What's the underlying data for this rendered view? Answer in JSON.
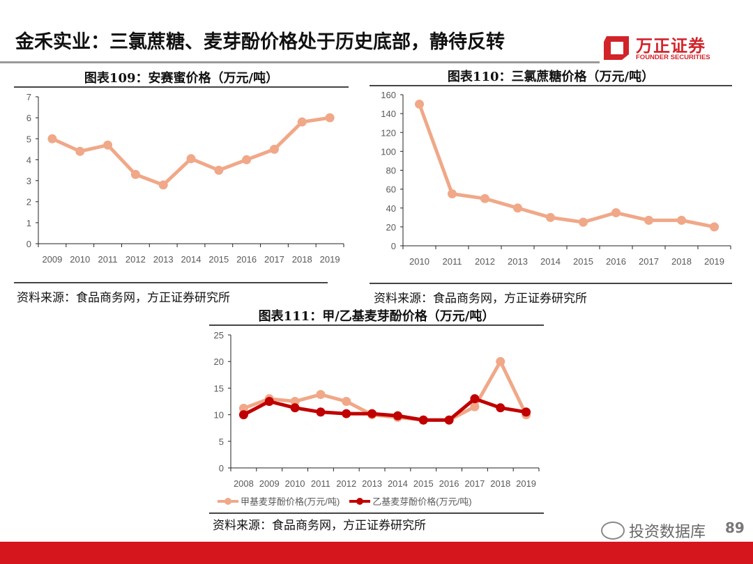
{
  "header": {
    "title": "金禾实业：三氯蔗糖、麦芽酚价格处于历史底部，静待反转",
    "logo_cn": "万正证券",
    "logo_en": "FOUNDER SECURITIES",
    "brand_color": "#d2232a"
  },
  "footer": {
    "watermark": "投资数据库",
    "page_number": "89"
  },
  "chart_data": [
    {
      "type": "line",
      "title": "图表109：安赛蜜价格（万元/吨）",
      "source": "资料来源：食品商务网，方正证券研究所",
      "categories": [
        "2009",
        "2010",
        "2011",
        "2012",
        "2013",
        "2014",
        "2015",
        "2016",
        "2017",
        "2018",
        "2019"
      ],
      "series": [
        {
          "values": [
            5.0,
            4.4,
            4.7,
            3.3,
            2.8,
            4.05,
            3.5,
            4.0,
            4.5,
            5.8,
            6.0
          ],
          "color": "#f0a888"
        }
      ],
      "ylim": [
        0,
        7
      ],
      "yticks": [
        0,
        1,
        2,
        3,
        4,
        5,
        6,
        7
      ],
      "grid": false
    },
    {
      "type": "line",
      "title": "图表110：三氯蔗糖价格（万元/吨）",
      "source": "资料来源：食品商务网，方正证券研究所",
      "categories": [
        "2010",
        "2011",
        "2012",
        "2013",
        "2014",
        "2015",
        "2016",
        "2017",
        "2018",
        "2019"
      ],
      "series": [
        {
          "values": [
            150,
            55,
            50,
            40,
            30,
            25,
            35,
            27,
            27,
            20
          ],
          "color": "#f0a888"
        }
      ],
      "ylim": [
        0,
        160
      ],
      "yticks": [
        0,
        20,
        40,
        60,
        80,
        100,
        120,
        140,
        160
      ],
      "grid": false
    },
    {
      "type": "line",
      "title": "图表111：甲/乙基麦芽酚价格（万元/吨）",
      "source": "资料来源：食品商务网，方正证券研究所",
      "categories": [
        "2008",
        "2009",
        "2010",
        "2011",
        "2012",
        "2013",
        "2014",
        "2015",
        "2016",
        "2017",
        "2018",
        "2019"
      ],
      "series": [
        {
          "name": "甲基麦芽酚价格(万元/吨)",
          "values": [
            11.2,
            13.0,
            12.5,
            13.8,
            12.5,
            10.0,
            9.5,
            9.0,
            9.0,
            11.5,
            20.0,
            10.0
          ],
          "color": "#f0a888"
        },
        {
          "name": "乙基麦芽酚价格(万元/吨)",
          "values": [
            10.0,
            12.5,
            11.3,
            10.5,
            10.2,
            10.2,
            9.8,
            9.0,
            9.0,
            13.0,
            11.3,
            10.5
          ],
          "color": "#c00000"
        }
      ],
      "ylim": [
        0,
        25
      ],
      "yticks": [
        0,
        5,
        10,
        15,
        20,
        25
      ],
      "grid": false,
      "legend": "bottom"
    }
  ]
}
